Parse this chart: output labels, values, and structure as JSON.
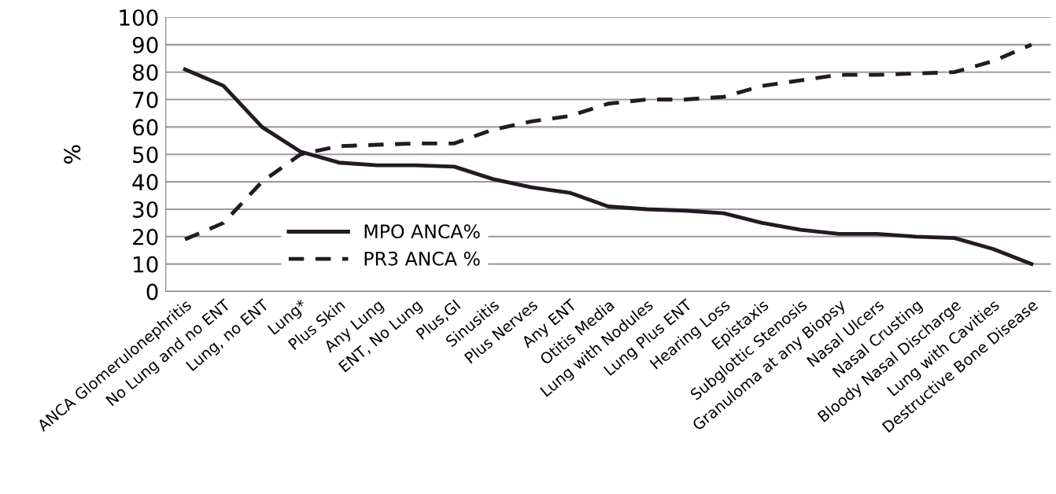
{
  "chart_data": {
    "type": "line",
    "ylabel": "%",
    "categories": [
      "ANCA Glomerulonephritis",
      "No Lung and no ENT",
      "Lung, no ENT",
      "Lung*",
      "Plus Skin",
      "Any Lung",
      "ENT, No Lung",
      "Plus,GI",
      "Sinusitis",
      "Plus Nerves",
      "Any ENT",
      "Otitis Media",
      "Lung with Nodules",
      "Lung Plus ENT",
      "Hearing Loss",
      "Epistaxis",
      "Subglottic Stenosis",
      "Granuloma at any Biopsy",
      "Nasal Ulcers",
      "Nasal Crusting",
      "Bloody Nasal Discharge",
      "Lung with Cavities",
      "Destructive Bone Disease"
    ],
    "series": [
      {
        "name": "MPO ANCA%",
        "color": "#231a24",
        "line_style": "solid",
        "values": [
          81,
          75,
          60,
          51,
          47,
          46,
          46,
          45.5,
          41,
          38,
          36,
          31,
          30,
          29.5,
          28.5,
          25,
          22.5,
          21,
          21,
          20,
          19.5,
          15.5,
          10
        ]
      },
      {
        "name": "PR3 ANCA %",
        "color": "#231a24",
        "line_style": "dashed",
        "values": [
          19,
          25,
          40,
          50,
          53,
          53.5,
          54,
          54,
          59,
          62,
          64,
          68.5,
          70,
          70,
          71,
          75,
          77,
          79,
          79,
          79.5,
          80,
          84,
          90
        ]
      }
    ],
    "ylim": [
      0,
      100
    ],
    "yticks": [
      0,
      10,
      20,
      30,
      40,
      50,
      60,
      70,
      80,
      90,
      100
    ],
    "grid": "y",
    "legend": "bottom left",
    "marker": "none"
  }
}
